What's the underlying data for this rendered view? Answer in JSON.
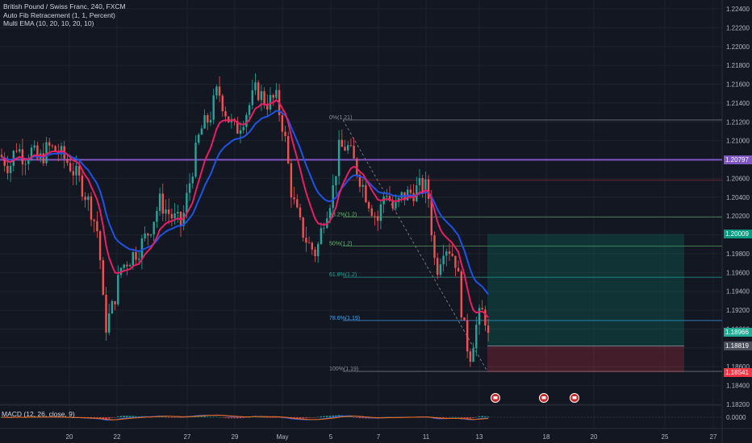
{
  "header": {
    "symbol_line": "British Pound / Swiss Franc, 240, FXCM",
    "indicator_1": "Auto Fib Retracement (1, 1, Percent)",
    "indicator_2": "Multi EMA (10, 20, 10, 20, 10)"
  },
  "macd": {
    "label": "MACD (12, 26, close, 9)",
    "zero_label": "0.0000"
  },
  "price_axis": {
    "ticks": [
      "1.22400",
      "1.22200",
      "1.22000",
      "1.21800",
      "1.21600",
      "1.21400",
      "1.21200",
      "1.21000",
      "1.20800",
      "1.20600",
      "1.20400",
      "1.20200",
      "1.20000",
      "1.19800",
      "1.19600",
      "1.19400",
      "1.19200",
      "1.19000",
      "1.18800",
      "1.18600",
      "1.18400",
      "1.18200"
    ],
    "tick_values": [
      1.224,
      1.222,
      1.22,
      1.218,
      1.216,
      1.214,
      1.212,
      1.21,
      1.208,
      1.206,
      1.204,
      1.202,
      1.2,
      1.198,
      1.196,
      1.194,
      1.192,
      1.19,
      1.188,
      1.186,
      1.184,
      1.182
    ]
  },
  "price_tags": [
    {
      "label": "1.20797",
      "value": 1.20797,
      "color": "#7e57c2"
    },
    {
      "label": "1.20009",
      "value": 1.20009,
      "color": "#089981"
    },
    {
      "label": "1.18966",
      "value": 1.18966,
      "color": "#22ab94"
    },
    {
      "label": "1.18819",
      "value": 1.18819,
      "color": "#4a4e5a"
    },
    {
      "label": "1.18541",
      "value": 1.18541,
      "color": "#f23645"
    }
  ],
  "time_axis": {
    "labels": [
      "20",
      "22",
      "27",
      "29",
      "May",
      "5",
      "7",
      "11",
      "13",
      "18",
      "20",
      "25",
      "27"
    ]
  },
  "fib_levels": [
    {
      "label": "0%(1.21)",
      "value": 1.2122,
      "color": "#8a8d95"
    },
    {
      "label": "38.2%(1.2)",
      "value": 1.2019,
      "color": "#66bb6a"
    },
    {
      "label": "50%(1.2)",
      "value": 1.1988,
      "color": "#66bb6a"
    },
    {
      "label": "61.8%(1.2)",
      "value": 1.1955,
      "color": "#26a69a"
    },
    {
      "label": "78.6%(1.19)",
      "value": 1.1909,
      "color": "#42a5f5"
    },
    {
      "label": "100%(1.19)",
      "value": 1.1855,
      "color": "#8a8d95"
    }
  ],
  "horizontal_line": {
    "value": 1.20797,
    "color": "#7e57c2"
  },
  "position": {
    "entry": 1.18819,
    "target": 1.20009,
    "stop": 1.18541
  },
  "colors": {
    "up": "#26a69a",
    "down": "#ef5350",
    "ema_fast": "#e91e63",
    "ema_slow": "#1e53e5",
    "background": "#131722",
    "grid": "#1e222d"
  },
  "event_icons": [
    "flag-icon",
    "flag-icon",
    "flag-icon"
  ]
}
